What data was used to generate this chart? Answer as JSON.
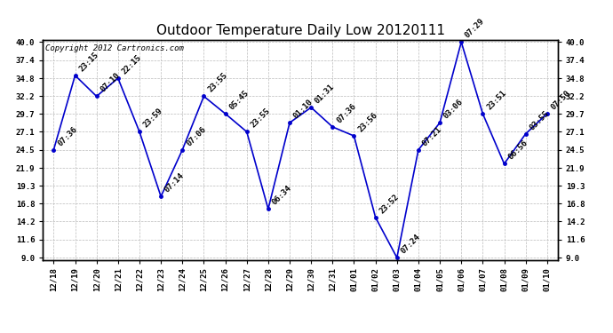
{
  "title": "Outdoor Temperature Daily Low 20120111",
  "copyright": "Copyright 2012 Cartronics.com",
  "x_labels": [
    "12/18",
    "12/19",
    "12/20",
    "12/21",
    "12/22",
    "12/23",
    "12/24",
    "12/25",
    "12/26",
    "12/27",
    "12/28",
    "12/29",
    "12/30",
    "12/31",
    "01/01",
    "01/02",
    "01/03",
    "01/04",
    "01/05",
    "01/06",
    "01/07",
    "01/08",
    "01/09",
    "01/10"
  ],
  "y_values": [
    24.5,
    35.2,
    32.2,
    34.8,
    27.1,
    17.8,
    24.5,
    32.2,
    29.7,
    27.1,
    16.0,
    28.4,
    30.6,
    27.8,
    26.5,
    14.8,
    9.0,
    24.5,
    28.4,
    40.0,
    29.7,
    22.5,
    26.8,
    29.7
  ],
  "annotations": [
    "07:36",
    "23:15",
    "07:10",
    "22:15",
    "23:59",
    "07:14",
    "07:06",
    "23:55",
    "05:45",
    "23:55",
    "06:34",
    "01:10",
    "01:31",
    "07:36",
    "23:56",
    "23:52",
    "07:24",
    "07:21",
    "03:06",
    "07:29",
    "23:51",
    "06:56",
    "03:55",
    "07:50"
  ],
  "y_ticks": [
    9.0,
    11.6,
    14.2,
    16.8,
    19.3,
    21.9,
    24.5,
    27.1,
    29.7,
    32.2,
    34.8,
    37.4,
    40.0
  ],
  "y_min": 9.0,
  "y_max": 40.0,
  "line_color": "#0000cc",
  "marker_color": "#0000cc",
  "bg_color": "#ffffff",
  "grid_color": "#bbbbbb",
  "title_fontsize": 11,
  "annotation_fontsize": 6.5,
  "copyright_fontsize": 6.5
}
